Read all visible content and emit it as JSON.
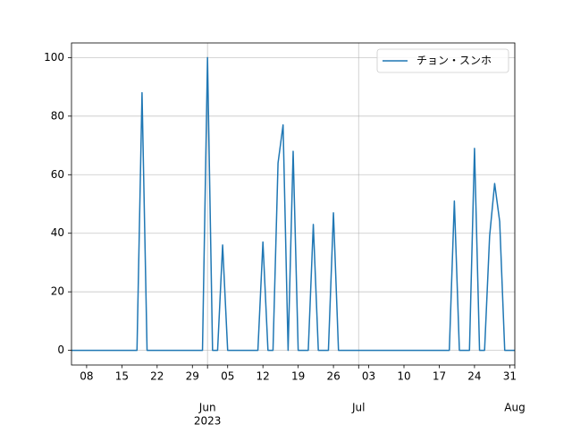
{
  "chart_data": {
    "type": "line",
    "x": [
      "2023-05-05",
      "2023-05-06",
      "2023-05-07",
      "2023-05-08",
      "2023-05-09",
      "2023-05-10",
      "2023-05-11",
      "2023-05-12",
      "2023-05-13",
      "2023-05-14",
      "2023-05-15",
      "2023-05-16",
      "2023-05-17",
      "2023-05-18",
      "2023-05-19",
      "2023-05-20",
      "2023-05-21",
      "2023-05-22",
      "2023-05-23",
      "2023-05-24",
      "2023-05-25",
      "2023-05-26",
      "2023-05-27",
      "2023-05-28",
      "2023-05-29",
      "2023-05-30",
      "2023-05-31",
      "2023-06-01",
      "2023-06-02",
      "2023-06-03",
      "2023-06-04",
      "2023-06-05",
      "2023-06-06",
      "2023-06-07",
      "2023-06-08",
      "2023-06-09",
      "2023-06-10",
      "2023-06-11",
      "2023-06-12",
      "2023-06-13",
      "2023-06-14",
      "2023-06-15",
      "2023-06-16",
      "2023-06-17",
      "2023-06-18",
      "2023-06-19",
      "2023-06-20",
      "2023-06-21",
      "2023-06-22",
      "2023-06-23",
      "2023-06-24",
      "2023-06-25",
      "2023-06-26",
      "2023-06-27",
      "2023-06-28",
      "2023-06-29",
      "2023-06-30",
      "2023-07-01",
      "2023-07-02",
      "2023-07-03",
      "2023-07-04",
      "2023-07-05",
      "2023-07-06",
      "2023-07-07",
      "2023-07-08",
      "2023-07-09",
      "2023-07-10",
      "2023-07-11",
      "2023-07-12",
      "2023-07-13",
      "2023-07-14",
      "2023-07-15",
      "2023-07-16",
      "2023-07-17",
      "2023-07-18",
      "2023-07-19",
      "2023-07-20",
      "2023-07-21",
      "2023-07-22",
      "2023-07-23",
      "2023-07-24",
      "2023-07-25",
      "2023-07-26",
      "2023-07-27",
      "2023-07-28",
      "2023-07-29",
      "2023-07-30",
      "2023-07-31",
      "2023-08-01"
    ],
    "series": [
      {
        "name": "チョン・スンホ",
        "color": "#1f77b4",
        "values": [
          0,
          0,
          0,
          0,
          0,
          0,
          0,
          0,
          0,
          0,
          0,
          0,
          0,
          0,
          88,
          0,
          0,
          0,
          0,
          0,
          0,
          0,
          0,
          0,
          0,
          0,
          0,
          100,
          0,
          0,
          36,
          0,
          0,
          0,
          0,
          0,
          0,
          0,
          37,
          0,
          0,
          64,
          77,
          0,
          68,
          0,
          0,
          0,
          43,
          0,
          0,
          0,
          47,
          0,
          0,
          0,
          0,
          0,
          0,
          0,
          0,
          0,
          0,
          0,
          0,
          0,
          0,
          0,
          0,
          0,
          0,
          0,
          0,
          0,
          0,
          0,
          51,
          0,
          0,
          0,
          69,
          0,
          0,
          39,
          57,
          44,
          0,
          0,
          0
        ]
      }
    ],
    "xlim": [
      "2023-05-05",
      "2023-08-01"
    ],
    "xticks": [
      {
        "value": "2023-05-08",
        "label": "08"
      },
      {
        "value": "2023-05-15",
        "label": "15"
      },
      {
        "value": "2023-05-22",
        "label": "22"
      },
      {
        "value": "2023-05-29",
        "label": "29"
      },
      {
        "value": "2023-06-05",
        "label": "05"
      },
      {
        "value": "2023-06-12",
        "label": "12"
      },
      {
        "value": "2023-06-19",
        "label": "19"
      },
      {
        "value": "2023-06-26",
        "label": "26"
      },
      {
        "value": "2023-07-03",
        "label": "03"
      },
      {
        "value": "2023-07-10",
        "label": "10"
      },
      {
        "value": "2023-07-17",
        "label": "17"
      },
      {
        "value": "2023-07-24",
        "label": "24"
      },
      {
        "value": "2023-07-31",
        "label": "31"
      }
    ],
    "xticks_major": [
      {
        "value": "2023-06-01",
        "label": "Jun"
      },
      {
        "value": "2023-07-01",
        "label": "Jul"
      },
      {
        "value": "2023-08-01",
        "label": "Aug"
      }
    ],
    "x_year_label": "2023",
    "ylim": [
      -5,
      105
    ],
    "yticks": [
      0,
      20,
      40,
      60,
      80,
      100
    ],
    "grid": true,
    "legend": "upper right"
  }
}
